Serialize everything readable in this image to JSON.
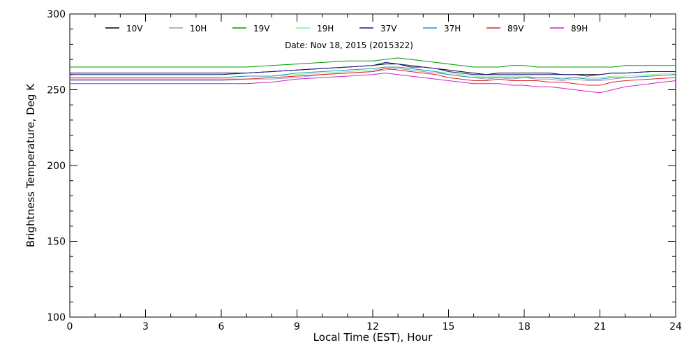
{
  "chart_data": {
    "type": "line",
    "title": "Date: Nov 18, 2015 (2015322)",
    "xlabel": "Local Time (EST), Hour",
    "ylabel": "Brightness Temperature, Deg  K",
    "xlim": [
      0,
      24
    ],
    "ylim": [
      100,
      300
    ],
    "x_ticks": [
      0,
      3,
      6,
      9,
      12,
      15,
      18,
      21,
      24
    ],
    "y_ticks": [
      100,
      150,
      200,
      250,
      300
    ],
    "grid": false,
    "legend_placement": "top",
    "x": [
      0,
      1,
      2,
      3,
      4,
      5,
      6,
      7,
      8,
      9,
      10,
      11,
      12,
      12.5,
      13,
      13.5,
      14,
      14.5,
      15,
      15.5,
      16,
      16.5,
      17,
      17.5,
      18,
      18.5,
      19,
      19.5,
      20,
      20.5,
      21,
      21.5,
      22,
      23,
      24
    ],
    "series": [
      {
        "name": "10V",
        "color": "#000000",
        "values": [
          261,
          261,
          261,
          261,
          261,
          261,
          261,
          261,
          262,
          263,
          264,
          265,
          266,
          267,
          267,
          265,
          265,
          264,
          263,
          262,
          261,
          260,
          261,
          261,
          261,
          261,
          261,
          260,
          260,
          260,
          260,
          261,
          261,
          262,
          262
        ]
      },
      {
        "name": "10H",
        "color": "#9b9bc8",
        "values": [
          256,
          256,
          256,
          256,
          256,
          256,
          256,
          257,
          257,
          258,
          260,
          261,
          262,
          263,
          264,
          263,
          262,
          261,
          260,
          259,
          258,
          257,
          258,
          257,
          258,
          257,
          257,
          256,
          257,
          256,
          256,
          257,
          258,
          259,
          260
        ]
      },
      {
        "name": "19V",
        "color": "#009900",
        "values": [
          265,
          265,
          265,
          265,
          265,
          265,
          265,
          265,
          266,
          267,
          268,
          269,
          269,
          270,
          271,
          270,
          269,
          268,
          267,
          266,
          265,
          265,
          265,
          266,
          266,
          265,
          265,
          265,
          265,
          265,
          265,
          265,
          266,
          266,
          266
        ]
      },
      {
        "name": "19H",
        "color": "#88ee88",
        "values": [
          258,
          258,
          258,
          258,
          258,
          258,
          258,
          259,
          259,
          260,
          261,
          262,
          263,
          264,
          265,
          264,
          263,
          262,
          261,
          260,
          259,
          259,
          259,
          259,
          259,
          258,
          258,
          258,
          258,
          258,
          258,
          259,
          259,
          260,
          261
        ]
      },
      {
        "name": "37V",
        "color": "#1a1a8c",
        "values": [
          260,
          260,
          260,
          260,
          260,
          260,
          260,
          261,
          262,
          263,
          264,
          265,
          266,
          268,
          267,
          266,
          265,
          264,
          262,
          261,
          260,
          260,
          260,
          260,
          260,
          260,
          260,
          260,
          260,
          259,
          260,
          261,
          261,
          262,
          262
        ]
      },
      {
        "name": "37H",
        "color": "#2a8fbf",
        "values": [
          258,
          258,
          258,
          258,
          258,
          258,
          258,
          259,
          259,
          261,
          262,
          263,
          264,
          265,
          265,
          264,
          263,
          262,
          260,
          259,
          258,
          258,
          258,
          258,
          258,
          258,
          258,
          257,
          258,
          257,
          257,
          258,
          258,
          259,
          260
        ]
      },
      {
        "name": "89V",
        "color": "#e02020",
        "values": [
          257,
          257,
          257,
          257,
          257,
          257,
          257,
          257,
          258,
          259,
          260,
          261,
          262,
          264,
          263,
          262,
          261,
          260,
          258,
          257,
          256,
          256,
          257,
          256,
          256,
          256,
          255,
          255,
          254,
          253,
          253,
          255,
          256,
          257,
          258
        ]
      },
      {
        "name": "89H",
        "color": "#cc22cc",
        "values": [
          254,
          254,
          254,
          254,
          254,
          254,
          254,
          254,
          255,
          257,
          258,
          259,
          260,
          261,
          260,
          259,
          258,
          257,
          256,
          255,
          254,
          254,
          254,
          253,
          253,
          252,
          252,
          251,
          250,
          249,
          248,
          250,
          252,
          254,
          256
        ]
      }
    ]
  }
}
